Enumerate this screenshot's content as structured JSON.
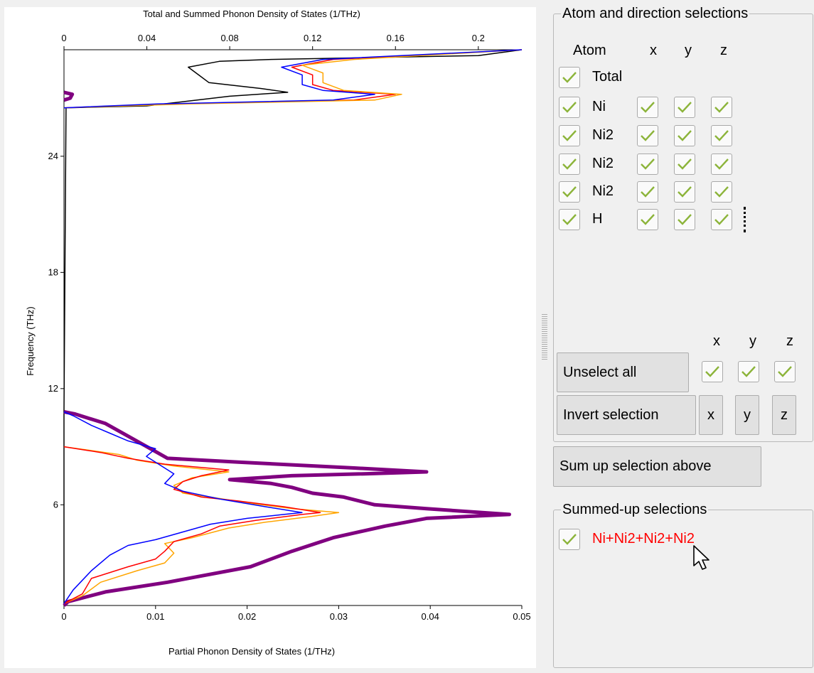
{
  "plot": {
    "top_axis_title": "Total and Summed Phonon Density of States (1/THz)",
    "bottom_axis_title": "Partial Phonon Density of States (1/THz)",
    "y_axis_title": "Frequency (THz)",
    "top_ticks": [
      "0",
      "0.04",
      "0.08",
      "0.12",
      "0.16",
      "0.2"
    ],
    "bottom_ticks": [
      "0",
      "0.01",
      "0.02",
      "0.03",
      "0.04",
      "0.05"
    ],
    "y_ticks": [
      "6",
      "12",
      "18",
      "24"
    ]
  },
  "chart_data": {
    "type": "line",
    "title": "",
    "xlabel_top": "Total and Summed Phonon Density of States (1/THz)",
    "xlabel_bottom": "Partial Phonon Density of States (1/THz)",
    "ylabel": "Frequency (THz)",
    "x_top_lim": [
      0,
      0.221
    ],
    "x_bottom_lim": [
      0,
      0.05
    ],
    "ylim": [
      0.8,
      29.5
    ],
    "grid": false,
    "series": [
      {
        "axis": "top",
        "color": "#000000",
        "width": 1.5,
        "points": [
          [
            0,
            0.8
          ],
          [
            0,
            10.8
          ],
          [
            0.001,
            26.5
          ],
          [
            0.04,
            26.6
          ],
          [
            0.08,
            27.1
          ],
          [
            0.108,
            27.3
          ],
          [
            0.095,
            27.5
          ],
          [
            0.07,
            27.8
          ],
          [
            0.065,
            28.2
          ],
          [
            0.06,
            28.6
          ],
          [
            0.075,
            28.9
          ],
          [
            0.1,
            29.0
          ],
          [
            0.2,
            29.2
          ],
          [
            0.221,
            29.5
          ]
        ]
      },
      {
        "axis": "top",
        "color": "#800080",
        "width": 5,
        "points": [
          [
            0,
            0.8
          ],
          [
            0.002,
            1.0
          ],
          [
            0.02,
            1.5
          ],
          [
            0.05,
            2.0
          ],
          [
            0.09,
            2.8
          ],
          [
            0.11,
            3.6
          ],
          [
            0.13,
            4.3
          ],
          [
            0.155,
            4.9
          ],
          [
            0.175,
            5.3
          ],
          [
            0.215,
            5.5
          ],
          [
            0.175,
            5.8
          ],
          [
            0.15,
            6.0
          ],
          [
            0.135,
            6.4
          ],
          [
            0.12,
            6.6
          ],
          [
            0.11,
            6.9
          ],
          [
            0.1,
            7.1
          ],
          [
            0.08,
            7.3
          ],
          [
            0.11,
            7.5
          ],
          [
            0.145,
            7.6
          ],
          [
            0.175,
            7.7
          ],
          [
            0.14,
            7.9
          ],
          [
            0.085,
            8.2
          ],
          [
            0.05,
            8.4
          ],
          [
            0.045,
            8.7
          ],
          [
            0.04,
            9.0
          ],
          [
            0.03,
            9.6
          ],
          [
            0.02,
            10.2
          ],
          [
            0.005,
            10.7
          ],
          [
            0,
            10.8
          ]
        ]
      },
      {
        "axis": "top",
        "color": "#800080",
        "width": 5,
        "points": [
          [
            0,
            26.9
          ],
          [
            0.003,
            27.0
          ],
          [
            0.004,
            27.2
          ],
          [
            0,
            27.3
          ]
        ]
      },
      {
        "axis": "bottom",
        "color": "#ffa500",
        "width": 1.5,
        "points": [
          [
            0,
            0.9
          ],
          [
            0.002,
            1.3
          ],
          [
            0.004,
            2.0
          ],
          [
            0.008,
            2.6
          ],
          [
            0.011,
            3.0
          ],
          [
            0.012,
            3.5
          ],
          [
            0.011,
            4.0
          ],
          [
            0.014,
            4.3
          ],
          [
            0.018,
            4.8
          ],
          [
            0.022,
            5.1
          ],
          [
            0.027,
            5.4
          ],
          [
            0.03,
            5.6
          ],
          [
            0.025,
            5.8
          ],
          [
            0.02,
            6.1
          ],
          [
            0.016,
            6.4
          ],
          [
            0.013,
            6.6
          ],
          [
            0.012,
            7.0
          ],
          [
            0.014,
            7.4
          ],
          [
            0.018,
            7.7
          ],
          [
            0.012,
            8.0
          ],
          [
            0.008,
            8.3
          ],
          [
            0.006,
            8.6
          ],
          [
            0.003,
            8.8
          ],
          [
            0,
            9.0
          ]
        ]
      },
      {
        "axis": "bottom",
        "color": "#ff0000",
        "width": 1.5,
        "points": [
          [
            0,
            0.9
          ],
          [
            0.002,
            1.4
          ],
          [
            0.003,
            2.2
          ],
          [
            0.007,
            2.8
          ],
          [
            0.01,
            3.2
          ],
          [
            0.011,
            3.6
          ],
          [
            0.012,
            4.1
          ],
          [
            0.015,
            4.5
          ],
          [
            0.017,
            4.9
          ],
          [
            0.021,
            5.2
          ],
          [
            0.026,
            5.5
          ],
          [
            0.028,
            5.6
          ],
          [
            0.024,
            5.9
          ],
          [
            0.019,
            6.2
          ],
          [
            0.015,
            6.4
          ],
          [
            0.012,
            6.8
          ],
          [
            0.013,
            7.2
          ],
          [
            0.015,
            7.5
          ],
          [
            0.018,
            7.8
          ],
          [
            0.011,
            8.1
          ],
          [
            0.007,
            8.4
          ],
          [
            0.004,
            8.7
          ],
          [
            0,
            9.0
          ]
        ]
      },
      {
        "axis": "bottom",
        "color": "#0000ff",
        "width": 1.5,
        "points": [
          [
            0,
            0.9
          ],
          [
            0.001,
            1.6
          ],
          [
            0.003,
            2.6
          ],
          [
            0.005,
            3.4
          ],
          [
            0.007,
            3.9
          ],
          [
            0.01,
            4.2
          ],
          [
            0.013,
            4.6
          ],
          [
            0.016,
            5.0
          ],
          [
            0.02,
            5.3
          ],
          [
            0.024,
            5.5
          ],
          [
            0.026,
            5.6
          ],
          [
            0.022,
            5.9
          ],
          [
            0.017,
            6.3
          ],
          [
            0.013,
            6.7
          ],
          [
            0.011,
            7.1
          ],
          [
            0.012,
            7.6
          ],
          [
            0.01,
            8.2
          ],
          [
            0.009,
            8.5
          ],
          [
            0.01,
            8.9
          ],
          [
            0.007,
            9.3
          ],
          [
            0.005,
            9.7
          ],
          [
            0.003,
            10.1
          ],
          [
            0.001,
            10.6
          ],
          [
            0,
            10.8
          ]
        ]
      },
      {
        "axis": "top",
        "color": "#ff0000",
        "width": 1.5,
        "points": [
          [
            0,
            26.5
          ],
          [
            0.05,
            26.7
          ],
          [
            0.14,
            26.9
          ],
          [
            0.16,
            27.2
          ],
          [
            0.13,
            27.4
          ],
          [
            0.12,
            27.7
          ],
          [
            0.12,
            28.2
          ],
          [
            0.11,
            28.6
          ],
          [
            0.13,
            29.0
          ],
          [
            0.221,
            29.5
          ]
        ]
      },
      {
        "axis": "top",
        "color": "#ffa500",
        "width": 1.5,
        "points": [
          [
            0,
            26.5
          ],
          [
            0.06,
            26.7
          ],
          [
            0.15,
            26.9
          ],
          [
            0.163,
            27.2
          ],
          [
            0.135,
            27.4
          ],
          [
            0.125,
            27.8
          ],
          [
            0.125,
            28.3
          ],
          [
            0.115,
            28.7
          ],
          [
            0.14,
            29.0
          ],
          [
            0.221,
            29.5
          ]
        ]
      },
      {
        "axis": "top",
        "color": "#0000ff",
        "width": 1.5,
        "points": [
          [
            0,
            26.5
          ],
          [
            0.045,
            26.7
          ],
          [
            0.13,
            26.9
          ],
          [
            0.15,
            27.2
          ],
          [
            0.125,
            27.4
          ],
          [
            0.115,
            27.7
          ],
          [
            0.115,
            28.2
          ],
          [
            0.105,
            28.6
          ],
          [
            0.125,
            29.0
          ],
          [
            0.221,
            29.5
          ]
        ]
      }
    ]
  },
  "atom_group": {
    "title": "Atom and direction selections",
    "header": {
      "atom": "Atom",
      "x": "x",
      "y": "y",
      "z": "z"
    },
    "total_label": "Total",
    "atoms": [
      {
        "name": "Ni"
      },
      {
        "name": "Ni2"
      },
      {
        "name": "Ni2"
      },
      {
        "name": "Ni2"
      },
      {
        "name": "H"
      }
    ],
    "dir_header": {
      "x": "x",
      "y": "y",
      "z": "z"
    },
    "unselect_all": "Unselect all",
    "invert_selection": "Invert selection",
    "invert_x": "x",
    "invert_y": "y",
    "invert_z": "z"
  },
  "sum_button": "Sum up selection above",
  "summed_group": {
    "title": "Summed-up selections",
    "items": [
      {
        "label": "Ni+Ni2+Ni2+Ni2",
        "color": "#ff0000"
      }
    ]
  },
  "colors": {
    "check": "#8cb43a",
    "total": "#000000",
    "summed": "#800080"
  }
}
